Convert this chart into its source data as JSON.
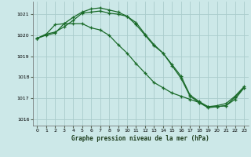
{
  "title": "Graphe pression niveau de la mer (hPa)",
  "bg_color": "#cce8e8",
  "grid_color": "#aacccc",
  "line_color": "#1a6b2a",
  "xlim": [
    -0.5,
    23.5
  ],
  "ylim": [
    1015.7,
    1021.6
  ],
  "yticks": [
    1016,
    1017,
    1018,
    1019,
    1020,
    1021
  ],
  "xticks": [
    0,
    1,
    2,
    3,
    4,
    5,
    6,
    7,
    8,
    9,
    10,
    11,
    12,
    13,
    14,
    15,
    16,
    17,
    18,
    19,
    20,
    21,
    22,
    23
  ],
  "series1_x": [
    0,
    1,
    2,
    3,
    4,
    5,
    6,
    7,
    8,
    9,
    10,
    11,
    12,
    13,
    14,
    15,
    16,
    17,
    18,
    19,
    20,
    21,
    22,
    23
  ],
  "series1_y": [
    1019.85,
    1020.0,
    1020.1,
    1020.55,
    1020.85,
    1021.1,
    1021.25,
    1021.3,
    1021.2,
    1021.1,
    1020.9,
    1020.6,
    1020.05,
    1019.55,
    1019.15,
    1018.6,
    1018.05,
    1017.15,
    1016.85,
    1016.6,
    1016.6,
    1016.65,
    1017.05,
    1017.5
  ],
  "series2_x": [
    0,
    1,
    2,
    3,
    4,
    5,
    6,
    7,
    8,
    9,
    10,
    11,
    12,
    13,
    14,
    15,
    16,
    17,
    18,
    19,
    20,
    21,
    22,
    23
  ],
  "series2_y": [
    1019.85,
    1020.05,
    1020.5,
    1020.55,
    1020.55,
    1020.55,
    1020.35,
    1020.25,
    1020.0,
    1019.55,
    1019.15,
    1018.65,
    1018.2,
    1017.75,
    1017.5,
    1017.25,
    1017.1,
    1016.95,
    1016.8,
    1016.55,
    1016.6,
    1016.65,
    1016.95,
    1017.5
  ],
  "series3_x": [
    0,
    1,
    2,
    3,
    4,
    5,
    6,
    7,
    8,
    9,
    10,
    11,
    12,
    13,
    14,
    15,
    16,
    17,
    18,
    19,
    20,
    21,
    22,
    23
  ],
  "series3_y": [
    1019.85,
    1020.05,
    1020.15,
    1020.4,
    1020.7,
    1021.05,
    1021.1,
    1021.15,
    1021.05,
    1021.0,
    1020.9,
    1020.5,
    1020.0,
    1019.5,
    1019.15,
    1018.55,
    1017.95,
    1017.1,
    1016.8,
    1016.6,
    1016.65,
    1016.75,
    1017.1,
    1017.55
  ]
}
